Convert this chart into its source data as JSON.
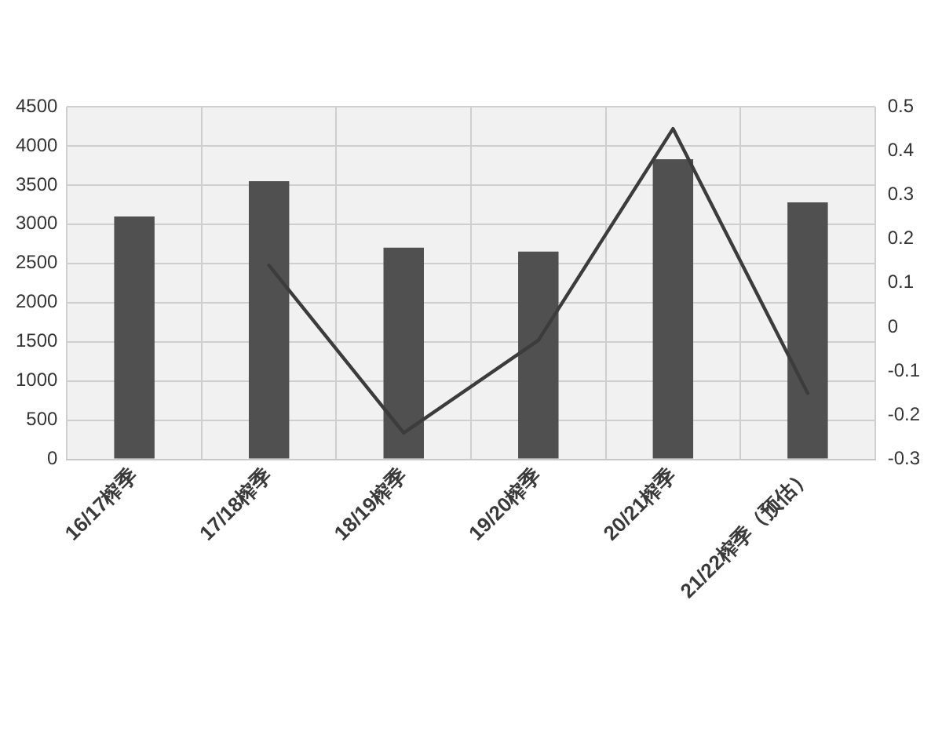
{
  "chart_data": {
    "type": "bar",
    "categories": [
      "16/17榨季",
      "17/18榨季",
      "18/19榨季",
      "19/20榨季",
      "20/21榨季",
      "21/22榨季（预估）"
    ],
    "series": [
      {
        "color": "#505050",
        "values": [
          3100,
          3550,
          2700,
          2650,
          3830,
          3280
        ]
      },
      {
        "type": "line",
        "axis": "y2",
        "color": "#3c3c3c",
        "values": [
          null,
          0.14,
          -0.24,
          -0.03,
          0.45,
          -0.15
        ]
      }
    ],
    "ylim": [
      0,
      4500
    ],
    "yticks": [
      0,
      500,
      1000,
      1500,
      2000,
      2500,
      3000,
      3500,
      4000,
      4500
    ],
    "y2lim": [
      -0.3,
      0.5
    ],
    "y2ticks": [
      -0.3,
      -0.2,
      -0.1,
      0,
      0.1,
      0.2,
      0.3,
      0.4,
      0.5
    ],
    "grid": true,
    "legend": false,
    "marker": "none",
    "line_style": "solid"
  }
}
